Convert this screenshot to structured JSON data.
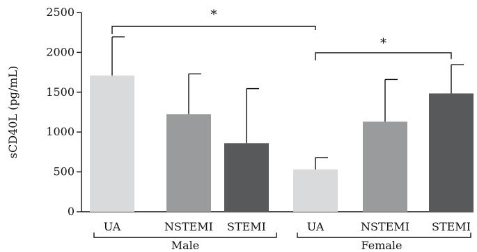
{
  "chart_data": {
    "type": "bar",
    "title": "",
    "xlabel": "",
    "ylabel": "sCD40L (pg/mL)",
    "ylim": [
      0,
      2500
    ],
    "yticks": [
      0,
      500,
      1000,
      1500,
      2000,
      2500
    ],
    "categories": [
      "UA",
      "NSTEMI",
      "STEMI",
      "UA",
      "NSTEMI",
      "STEMI"
    ],
    "groups": [
      {
        "label": "Male",
        "category_indices": [
          0,
          1,
          2
        ]
      },
      {
        "label": "Female",
        "category_indices": [
          3,
          4,
          5
        ]
      }
    ],
    "values": [
      1710,
      1225,
      860,
      530,
      1130,
      1485
    ],
    "error_upper": [
      2195,
      1730,
      1545,
      680,
      1660,
      1845
    ],
    "bar_colors": [
      "#d9dadc",
      "#9a9b9d",
      "#58595b",
      "#d9dadc",
      "#9a9b9d",
      "#58595b"
    ],
    "significance": [
      {
        "from_index": 0,
        "to_index": 3,
        "label": "*"
      },
      {
        "from_index": 3,
        "to_index": 5,
        "label": "*"
      }
    ],
    "grid": false,
    "legend": "none"
  }
}
